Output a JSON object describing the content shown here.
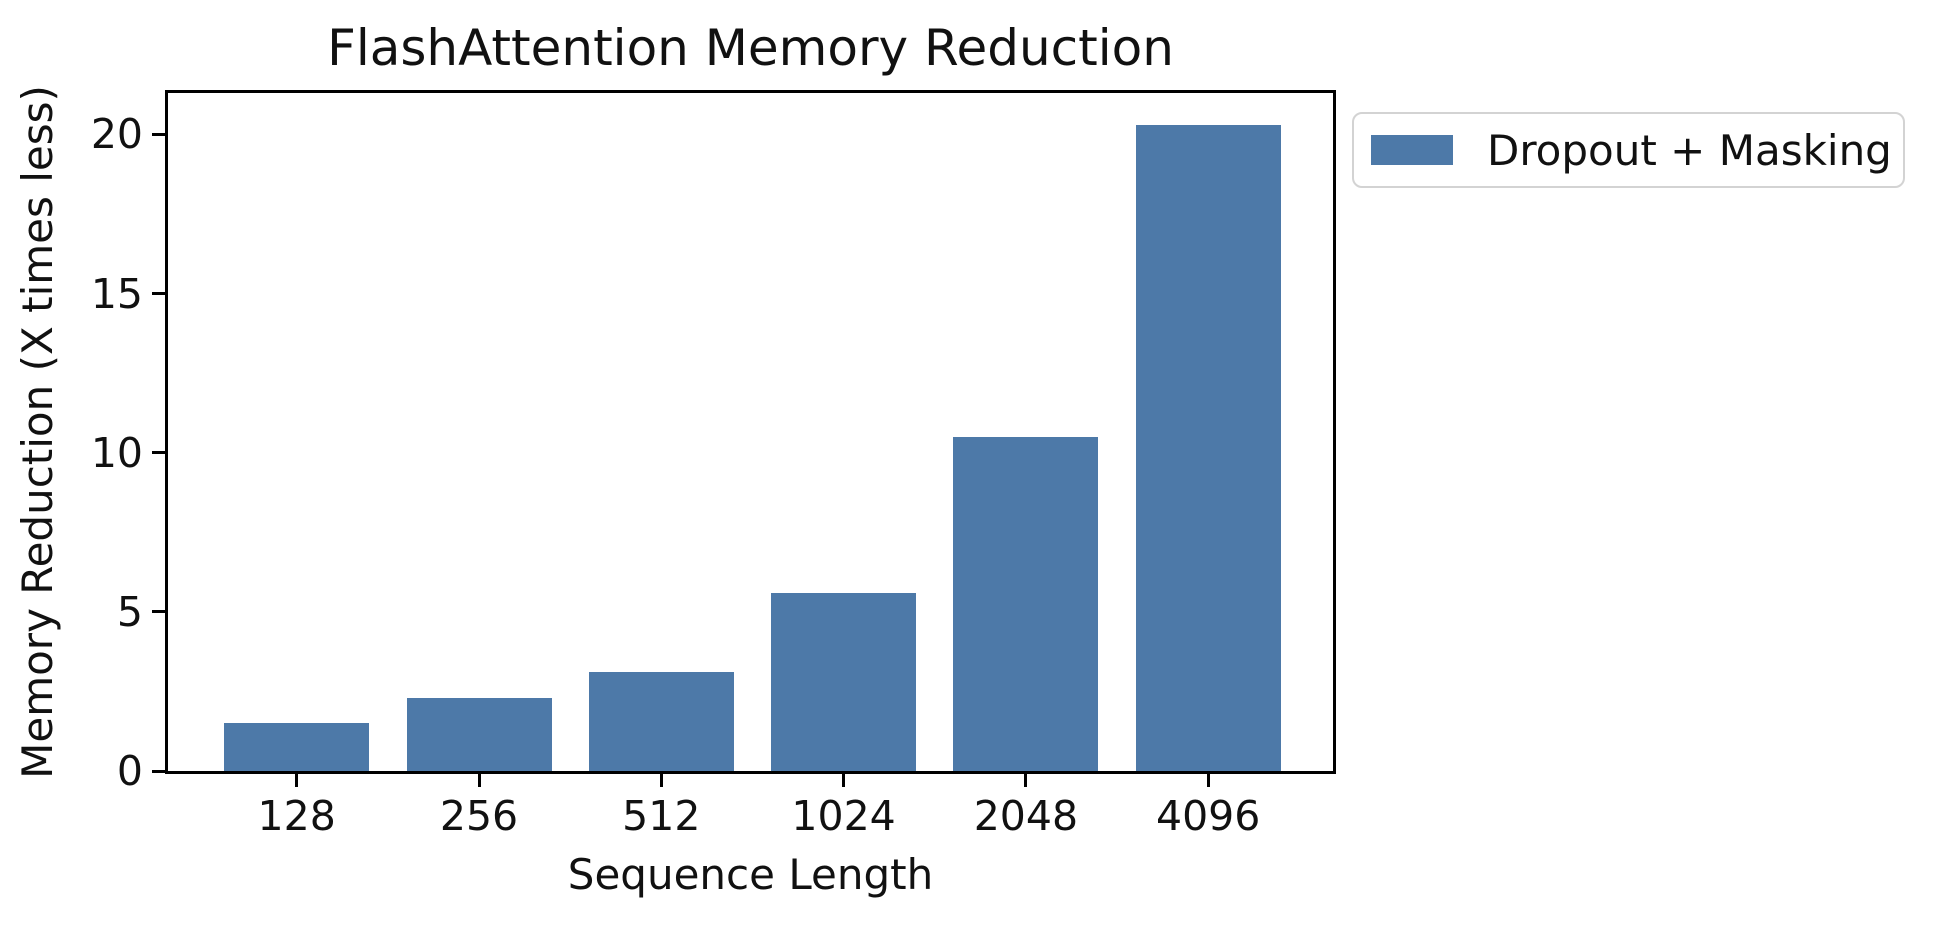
{
  "figure": {
    "background": "#ffffff"
  },
  "chart_data": {
    "type": "bar",
    "title": "FlashAttention Memory Reduction",
    "xlabel": "Sequence Length",
    "ylabel": "Memory Reduction (X times less)",
    "categories": [
      "128",
      "256",
      "512",
      "1024",
      "2048",
      "4096"
    ],
    "series": [
      {
        "name": "Dropout + Masking",
        "values": [
          1.5,
          2.3,
          3.1,
          5.6,
          10.5,
          20.3
        ]
      }
    ],
    "yticks": [
      0,
      5,
      10,
      15,
      20
    ],
    "ylim": [
      0,
      21.3
    ],
    "grid": false,
    "bar_color": "#4d79a8",
    "axis_color": "#000000",
    "text_color": "#111111",
    "legend": {
      "labels": [
        "Dropout + Masking"
      ],
      "position": "outside-upper-right",
      "border_color": "#d3d3d3"
    }
  }
}
